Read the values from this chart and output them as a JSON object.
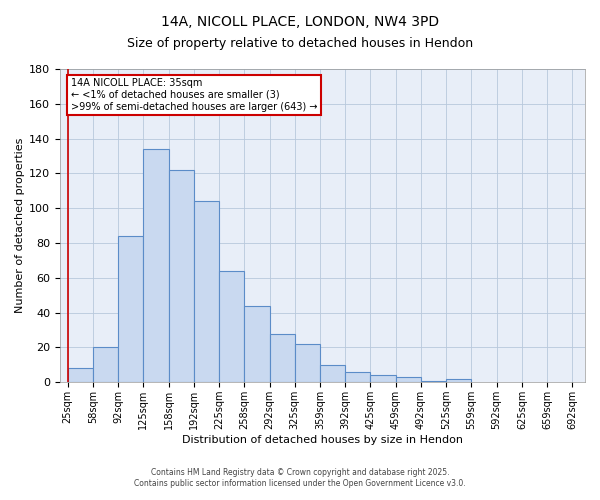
{
  "title_line1": "14A, NICOLL PLACE, LONDON, NW4 3PD",
  "title_line2": "Size of property relative to detached houses in Hendon",
  "xlabel": "Distribution of detached houses by size in Hendon",
  "ylabel": "Number of detached properties",
  "bar_values": [
    8,
    20,
    84,
    134,
    122,
    104,
    64,
    44,
    28,
    22,
    10,
    6,
    4,
    3,
    1,
    2
  ],
  "x_tick_labels": [
    "25sqm",
    "58sqm",
    "92sqm",
    "125sqm",
    "158sqm",
    "192sqm",
    "225sqm",
    "258sqm",
    "292sqm",
    "325sqm",
    "359sqm",
    "392sqm",
    "425sqm",
    "459sqm",
    "492sqm",
    "525sqm",
    "559sqm",
    "592sqm",
    "625sqm",
    "659sqm",
    "692sqm"
  ],
  "ylim": [
    0,
    180
  ],
  "yticks": [
    0,
    20,
    40,
    60,
    80,
    100,
    120,
    140,
    160,
    180
  ],
  "bar_color_face": "#c9d9f0",
  "bar_color_edge": "#5b8cc8",
  "grid_color": "#b8c8dc",
  "plot_bg_color": "#e8eef8",
  "fig_bg_color": "#ffffff",
  "annotation_title": "14A NICOLL PLACE: 35sqm",
  "annotation_line2": "← <1% of detached houses are smaller (3)",
  "annotation_line3": ">99% of semi-detached houses are larger (643) →",
  "ref_line_color": "#cc0000",
  "footer_line1": "Contains HM Land Registry data © Crown copyright and database right 2025.",
  "footer_line2": "Contains public sector information licensed under the Open Government Licence v3.0."
}
